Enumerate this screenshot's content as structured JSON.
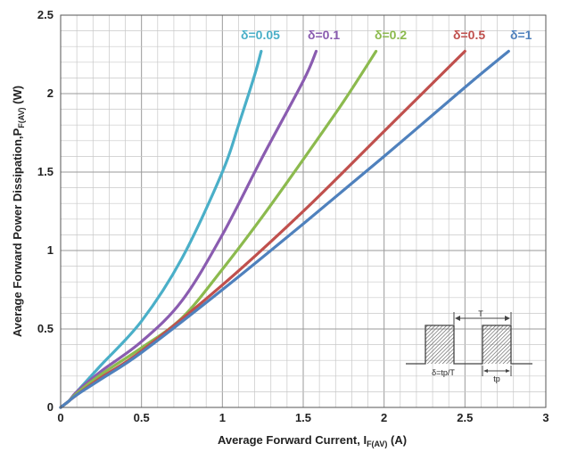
{
  "chart_data": {
    "type": "line",
    "title": "",
    "xlabel_main": "Average Forward Current,  I",
    "xlabel_sub": "F(AV)",
    "xlabel_tail": " (A)",
    "ylabel_main": "Average Forward Power Dissipation,P",
    "ylabel_sub": "F(AV)",
    "ylabel_tail": " (W)",
    "xlim": [
      0,
      3
    ],
    "ylim": [
      0,
      2.5
    ],
    "x_ticks": [
      "0",
      "0.5",
      "1",
      "1.5",
      "2",
      "2.5",
      "3"
    ],
    "y_ticks": [
      "0",
      "0.5",
      "1",
      "1.5",
      "2",
      "2.5"
    ],
    "grid": true,
    "legend": "inline labels at top",
    "series": [
      {
        "name": "δ=0.05",
        "color": "#4aafc8",
        "x": [
          0,
          0.05,
          0.1,
          0.25,
          0.5,
          0.75,
          1.0,
          1.1,
          1.2,
          1.24
        ],
        "y": [
          0,
          0.04,
          0.1,
          0.27,
          0.55,
          0.95,
          1.5,
          1.8,
          2.12,
          2.27
        ]
      },
      {
        "name": "δ=0.1",
        "color": "#8a5cb0",
        "x": [
          0,
          0.05,
          0.1,
          0.25,
          0.5,
          0.75,
          1.0,
          1.25,
          1.5,
          1.58
        ],
        "y": [
          0,
          0.04,
          0.1,
          0.23,
          0.42,
          0.68,
          1.1,
          1.6,
          2.08,
          2.27
        ]
      },
      {
        "name": "δ=0.2",
        "color": "#8cba4e",
        "x": [
          0,
          0.05,
          0.1,
          0.25,
          0.5,
          0.75,
          1.0,
          1.25,
          1.5,
          1.75,
          1.95
        ],
        "y": [
          0,
          0.04,
          0.09,
          0.21,
          0.38,
          0.57,
          0.88,
          1.22,
          1.58,
          1.95,
          2.27
        ]
      },
      {
        "name": "δ=0.5",
        "color": "#c0504d",
        "x": [
          0,
          0.05,
          0.1,
          0.25,
          0.5,
          1.0,
          1.5,
          2.0,
          2.5
        ],
        "y": [
          0,
          0.04,
          0.08,
          0.19,
          0.36,
          0.78,
          1.25,
          1.76,
          2.27
        ]
      },
      {
        "name": "δ=1",
        "color": "#4f81bd",
        "x": [
          0,
          0.05,
          0.1,
          0.25,
          0.5,
          1.0,
          1.5,
          2.0,
          2.5,
          2.77
        ],
        "y": [
          0,
          0.04,
          0.08,
          0.18,
          0.35,
          0.75,
          1.17,
          1.6,
          2.04,
          2.27
        ]
      }
    ],
    "inset": {
      "period_label": "T",
      "pulse_label": "tp",
      "formula": "δ=tp/T"
    }
  }
}
